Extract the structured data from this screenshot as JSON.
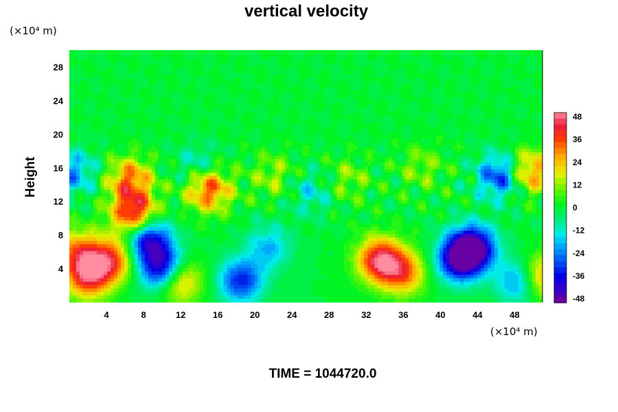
{
  "chart_data": {
    "type": "heatmap",
    "title": "vertical velocity",
    "xunit": "(×10⁴ m)",
    "yunit": "(×10⁴ m)",
    "ylabel": "Height",
    "xlabel": "",
    "footer": "TIME = 1044720.0",
    "xlim": [
      0,
      51
    ],
    "ylim": [
      0,
      30
    ],
    "x_ticks": [
      4,
      8,
      12,
      16,
      20,
      24,
      28,
      32,
      36,
      40,
      44,
      48
    ],
    "y_ticks": [
      4,
      8,
      12,
      16,
      20,
      24,
      28
    ],
    "colorbar": {
      "vmin": -48,
      "vmax": 48,
      "ticks": [
        48,
        36,
        24,
        12,
        0,
        -12,
        -24,
        -36,
        -48
      ],
      "levels": 32
    },
    "features": [
      {
        "x": 2.0,
        "y": 3.0,
        "value": 38
      },
      {
        "x": 4.5,
        "y": 5.0,
        "value": 36
      },
      {
        "x": 1.0,
        "y": 6.0,
        "value": 28
      },
      {
        "x": 7.0,
        "y": 10.5,
        "value": 42
      },
      {
        "x": 8.5,
        "y": 7.5,
        "value": -40
      },
      {
        "x": 10.0,
        "y": 4.0,
        "value": -44
      },
      {
        "x": 11.8,
        "y": 2.6,
        "value": 30
      },
      {
        "x": 15.0,
        "y": 13.5,
        "value": 36
      },
      {
        "x": 18.5,
        "y": 2.5,
        "value": -32
      },
      {
        "x": 21.5,
        "y": 6.5,
        "value": -18
      },
      {
        "x": 33.5,
        "y": 5.0,
        "value": 44
      },
      {
        "x": 36.0,
        "y": 3.5,
        "value": 30
      },
      {
        "x": 42.0,
        "y": 5.0,
        "value": -40
      },
      {
        "x": 43.5,
        "y": 6.5,
        "value": -48
      },
      {
        "x": 46.5,
        "y": 15.0,
        "value": -32
      },
      {
        "x": 49.5,
        "y": 15.5,
        "value": 30
      },
      {
        "x": 6.5,
        "y": 14.5,
        "value": 30
      },
      {
        "x": 0.5,
        "y": 15.5,
        "value": -20
      },
      {
        "x": 22.0,
        "y": 15.0,
        "value": 12
      },
      {
        "x": 30.0,
        "y": 14.5,
        "value": 10
      },
      {
        "x": 38.0,
        "y": 16.0,
        "value": 10
      },
      {
        "x": 14.0,
        "y": 16.0,
        "value": -14
      },
      {
        "x": 26.0,
        "y": 13.0,
        "value": -12
      },
      {
        "x": 48.5,
        "y": 2.5,
        "value": -26
      },
      {
        "x": 50.8,
        "y": 3.0,
        "value": 30
      }
    ]
  }
}
